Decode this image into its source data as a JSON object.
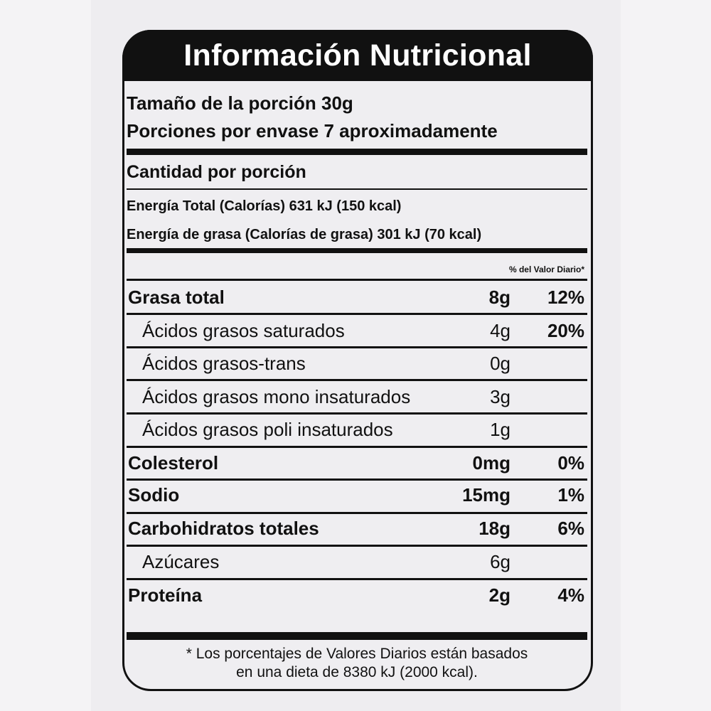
{
  "title": "Información Nutricional",
  "serving_size": "Tamaño de la porción 30g",
  "servings_per_container": "Porciones por envase 7 aproximadamente",
  "amount_per_serving": "Cantidad por porción",
  "energy_total": "Energía Total (Calorías) 631 kJ (150 kcal)",
  "energy_fat": "Energía de grasa (Calorías de grasa) 301 kJ (70 kcal)",
  "dv_header": "% del Valor Diario*",
  "rows": [
    {
      "name": "Grasa total",
      "amount": "8g",
      "dv": "12%"
    },
    {
      "name": "Ácidos grasos saturados",
      "amount": "4g",
      "dv": "20%"
    },
    {
      "name": "Ácidos grasos-trans",
      "amount": "0g",
      "dv": ""
    },
    {
      "name": "Ácidos grasos mono insaturados",
      "amount": "3g",
      "dv": ""
    },
    {
      "name": "Ácidos grasos poli insaturados",
      "amount": "1g",
      "dv": ""
    },
    {
      "name": "Colesterol",
      "amount": "0mg",
      "dv": "0%"
    },
    {
      "name": "Sodio",
      "amount": "15mg",
      "dv": "1%"
    },
    {
      "name": "Carbohidratos totales",
      "amount": "18g",
      "dv": "6%"
    },
    {
      "name": "Azúcares",
      "amount": "6g",
      "dv": ""
    },
    {
      "name": "Proteína",
      "amount": "2g",
      "dv": "4%"
    }
  ],
  "footnote_line1": "* Los porcentajes de Valores Diarios están basados",
  "footnote_line2": "en una dieta de 8380 kJ (2000 kcal)."
}
